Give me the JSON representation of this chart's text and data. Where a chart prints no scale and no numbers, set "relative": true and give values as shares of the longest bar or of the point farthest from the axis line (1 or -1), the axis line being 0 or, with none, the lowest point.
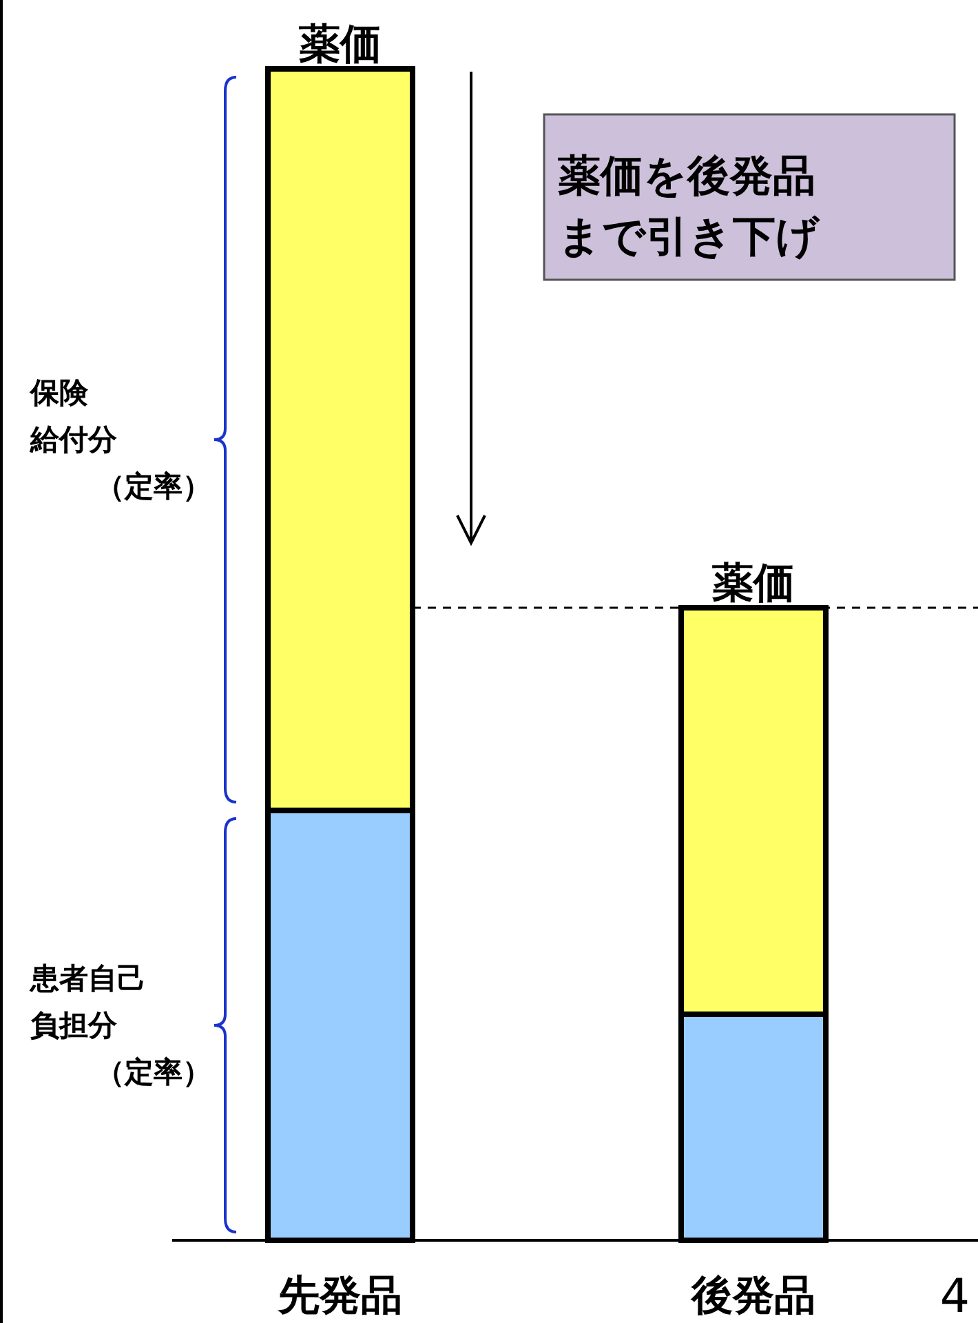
{
  "chart_data": {
    "type": "bar",
    "relative": true,
    "stacked": true,
    "categories": [
      "先発品",
      "後発品"
    ],
    "series": [
      {
        "name": "患者自己負担分（定率）",
        "color": "#99ccff",
        "values": [
          0.367,
          0.193
        ]
      },
      {
        "name": "保険給付分（定率）",
        "color": "#ffff66",
        "values": [
          0.633,
          0.347
        ]
      }
    ],
    "annotations": [
      {
        "text": "薬価",
        "x": "先発品",
        "y": 1
      },
      {
        "text": "薬価",
        "x": "後発品",
        "y": 0.54
      },
      "薬価を後発品まで引き下げ",
      "4"
    ],
    "ref_lines": [
      {
        "axis": "y",
        "value": 0.54,
        "line_style": "dashed",
        "color": "#000000"
      }
    ],
    "legend": false
  }
}
